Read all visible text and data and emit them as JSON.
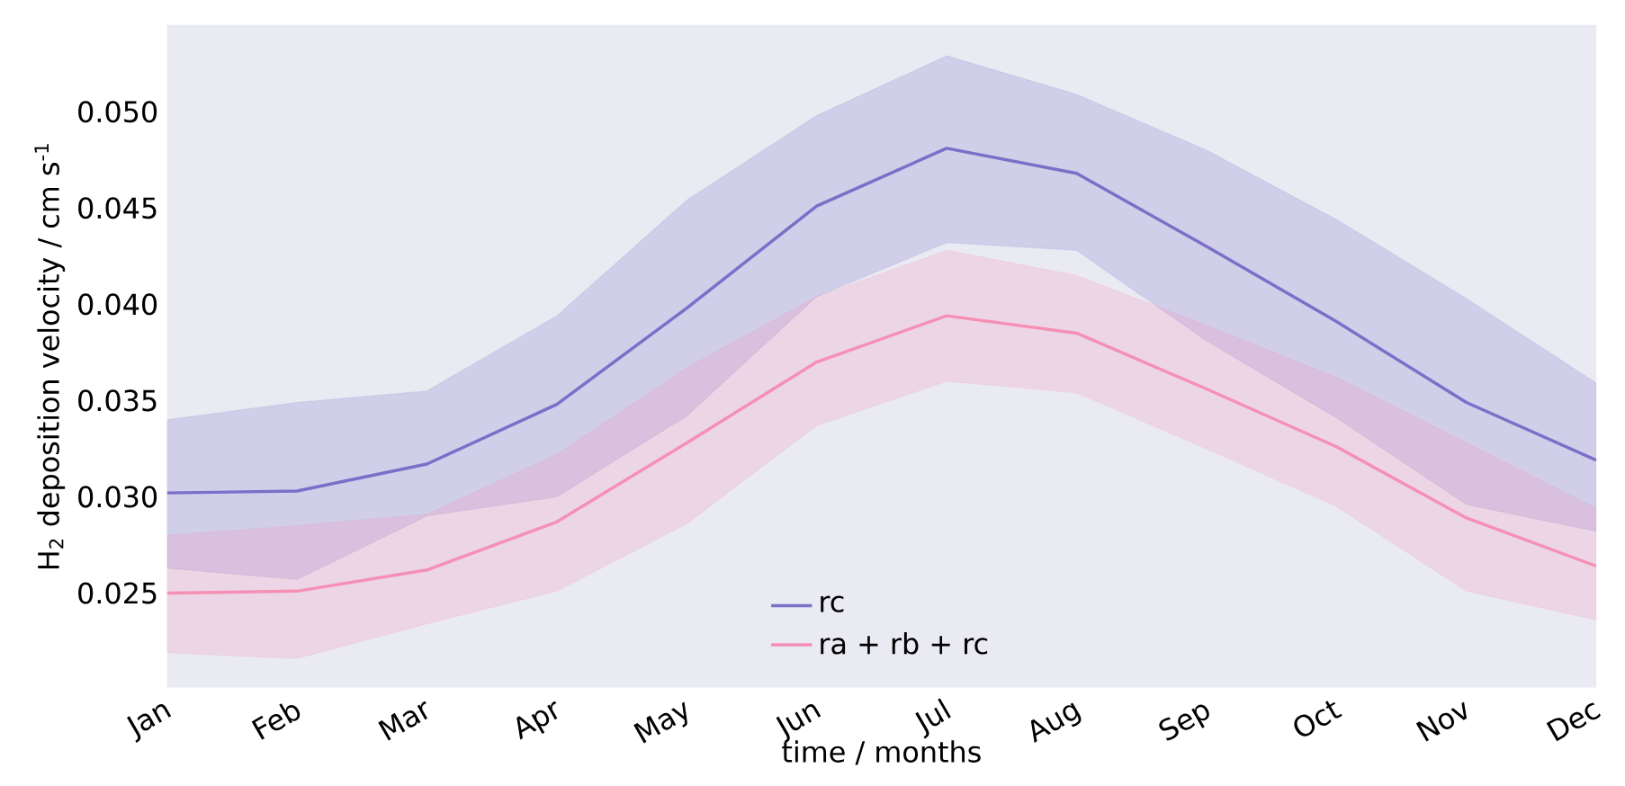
{
  "chart_data": {
    "type": "line",
    "xlabel": "time / months",
    "ylabel": "H$_{2}$ deposition velocity / cm s$^{-1}$",
    "categories": [
      "Jan",
      "Feb",
      "Mar",
      "Apr",
      "May",
      "Jun",
      "Jul",
      "Aug",
      "Sep",
      "Oct",
      "Nov",
      "Dec"
    ],
    "series": [
      {
        "name": "rc",
        "color": "#7b6fc8",
        "values": [
          0.0302,
          0.0303,
          0.0317,
          0.0348,
          0.0398,
          0.0451,
          0.0481,
          0.0468,
          0.043,
          0.0391,
          0.0349,
          0.0319
        ],
        "upper": [
          0.034,
          0.0349,
          0.0355,
          0.0394,
          0.0454,
          0.0498,
          0.0529,
          0.0509,
          0.048,
          0.0444,
          0.0403,
          0.0359
        ],
        "lower": [
          0.0263,
          0.0257,
          0.029,
          0.03,
          0.0342,
          0.0404,
          0.0432,
          0.0428,
          0.0381,
          0.0341,
          0.0296,
          0.0282
        ]
      },
      {
        "name": "ra + rb + rc",
        "color": "#f590b4",
        "values": [
          0.025,
          0.0251,
          0.0262,
          0.0287,
          0.0328,
          0.037,
          0.0394,
          0.0385,
          0.0356,
          0.0326,
          0.0289,
          0.0264
        ],
        "upper": [
          0.028,
          0.0285,
          0.0291,
          0.0322,
          0.0367,
          0.0404,
          0.0428,
          0.0415,
          0.0389,
          0.0362,
          0.0328,
          0.0294
        ],
        "lower": [
          0.0219,
          0.0216,
          0.0234,
          0.0251,
          0.0286,
          0.0337,
          0.036,
          0.0354,
          0.0325,
          0.0295,
          0.0251,
          0.0236
        ]
      }
    ],
    "ylim": [
      0.0201,
      0.0545
    ],
    "yticks": [
      {
        "value": 0.025,
        "label": "0.025"
      },
      {
        "value": 0.03,
        "label": "0.030"
      },
      {
        "value": 0.035,
        "label": "0.035"
      },
      {
        "value": 0.04,
        "label": "0.040"
      },
      {
        "value": 0.045,
        "label": "0.045"
      },
      {
        "value": 0.05,
        "label": "0.050"
      }
    ],
    "legend": "bottom",
    "line_style": "solid",
    "marker": "none"
  }
}
